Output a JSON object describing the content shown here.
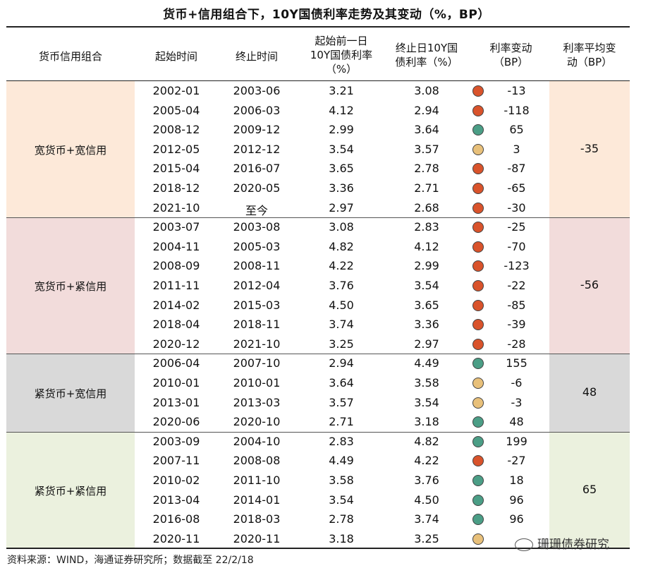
{
  "title": "货币+信用组合下，10Y国债利率走势及其变动（%，BP）",
  "headers": {
    "combo": "货币信用组合",
    "start": "起始时间",
    "end": "终止时间",
    "prev_rate": "起始前一日\n10Y国债利率\n（%）",
    "end_rate": "终止日10Y国\n债利率（%）",
    "change": "利率变动\n（BP）",
    "avg_change": "利率平均变\n动（BP）"
  },
  "dot_colors": {
    "down": "#d9532b",
    "flat": "#e8c07a",
    "up": "#4b9e86"
  },
  "group_colors": [
    "#fde9d9",
    "#f2dcdb",
    "#d9d9d9",
    "#ebf1de"
  ],
  "groups": [
    {
      "name": "宽货币+宽信用",
      "avg": "-35",
      "rows": [
        {
          "start": "2002-01",
          "end": "2003-06",
          "prev": "3.21",
          "endr": "3.08",
          "dot": "down",
          "chg": "-13"
        },
        {
          "start": "2005-04",
          "end": "2006-03",
          "prev": "4.12",
          "endr": "2.94",
          "dot": "down",
          "chg": "-118"
        },
        {
          "start": "2008-12",
          "end": "2009-12",
          "prev": "2.99",
          "endr": "3.64",
          "dot": "up",
          "chg": "65"
        },
        {
          "start": "2012-05",
          "end": "2012-12",
          "prev": "3.54",
          "endr": "3.57",
          "dot": "flat",
          "chg": "3"
        },
        {
          "start": "2015-04",
          "end": "2016-07",
          "prev": "3.65",
          "endr": "2.78",
          "dot": "down",
          "chg": "-87"
        },
        {
          "start": "2018-12",
          "end": "2020-05",
          "prev": "3.36",
          "endr": "2.71",
          "dot": "down",
          "chg": "-65"
        },
        {
          "start": "2021-10",
          "end": "至今",
          "prev": "2.97",
          "endr": "2.68",
          "dot": "down",
          "chg": "-30"
        }
      ]
    },
    {
      "name": "宽货币+紧信用",
      "avg": "-56",
      "rows": [
        {
          "start": "2003-07",
          "end": "2003-08",
          "prev": "3.08",
          "endr": "2.83",
          "dot": "down",
          "chg": "-25"
        },
        {
          "start": "2004-11",
          "end": "2005-03",
          "prev": "4.82",
          "endr": "4.12",
          "dot": "down",
          "chg": "-70"
        },
        {
          "start": "2008-09",
          "end": "2008-11",
          "prev": "4.22",
          "endr": "2.99",
          "dot": "down",
          "chg": "-123"
        },
        {
          "start": "2011-11",
          "end": "2012-04",
          "prev": "3.76",
          "endr": "3.54",
          "dot": "down",
          "chg": "-22"
        },
        {
          "start": "2014-02",
          "end": "2015-03",
          "prev": "4.50",
          "endr": "3.65",
          "dot": "down",
          "chg": "-85"
        },
        {
          "start": "2018-04",
          "end": "2018-11",
          "prev": "3.74",
          "endr": "3.36",
          "dot": "down",
          "chg": "-39"
        },
        {
          "start": "2020-12",
          "end": "2021-10",
          "prev": "3.25",
          "endr": "2.97",
          "dot": "down",
          "chg": "-28"
        }
      ]
    },
    {
      "name": "紧货币+宽信用",
      "avg": "48",
      "rows": [
        {
          "start": "2006-04",
          "end": "2007-10",
          "prev": "2.94",
          "endr": "4.49",
          "dot": "up",
          "chg": "155"
        },
        {
          "start": "2010-01",
          "end": "2010-01",
          "prev": "3.64",
          "endr": "3.58",
          "dot": "flat",
          "chg": "-6"
        },
        {
          "start": "2013-01",
          "end": "2013-03",
          "prev": "3.57",
          "endr": "3.54",
          "dot": "flat",
          "chg": "-3"
        },
        {
          "start": "2020-06",
          "end": "2020-10",
          "prev": "2.71",
          "endr": "3.18",
          "dot": "up",
          "chg": "48"
        }
      ]
    },
    {
      "name": "紧货币+紧信用",
      "avg": "65",
      "rows": [
        {
          "start": "2003-09",
          "end": "2004-10",
          "prev": "2.83",
          "endr": "4.82",
          "dot": "up",
          "chg": "199"
        },
        {
          "start": "2007-11",
          "end": "2008-08",
          "prev": "4.49",
          "endr": "4.22",
          "dot": "down",
          "chg": "-27"
        },
        {
          "start": "2010-02",
          "end": "2011-10",
          "prev": "3.58",
          "endr": "3.76",
          "dot": "up",
          "chg": "18"
        },
        {
          "start": "2013-04",
          "end": "2014-01",
          "prev": "3.54",
          "endr": "4.50",
          "dot": "up",
          "chg": "96"
        },
        {
          "start": "2016-08",
          "end": "2018-03",
          "prev": "2.78",
          "endr": "3.74",
          "dot": "up",
          "chg": "96"
        },
        {
          "start": "2020-11",
          "end": "2020-11",
          "prev": "3.18",
          "endr": "3.25",
          "dot": "flat",
          "chg": ""
        }
      ]
    }
  ],
  "source": "资料来源：WIND，海通证券研究所；数据截至 22/2/18",
  "watermark": "珊珊债券研究"
}
